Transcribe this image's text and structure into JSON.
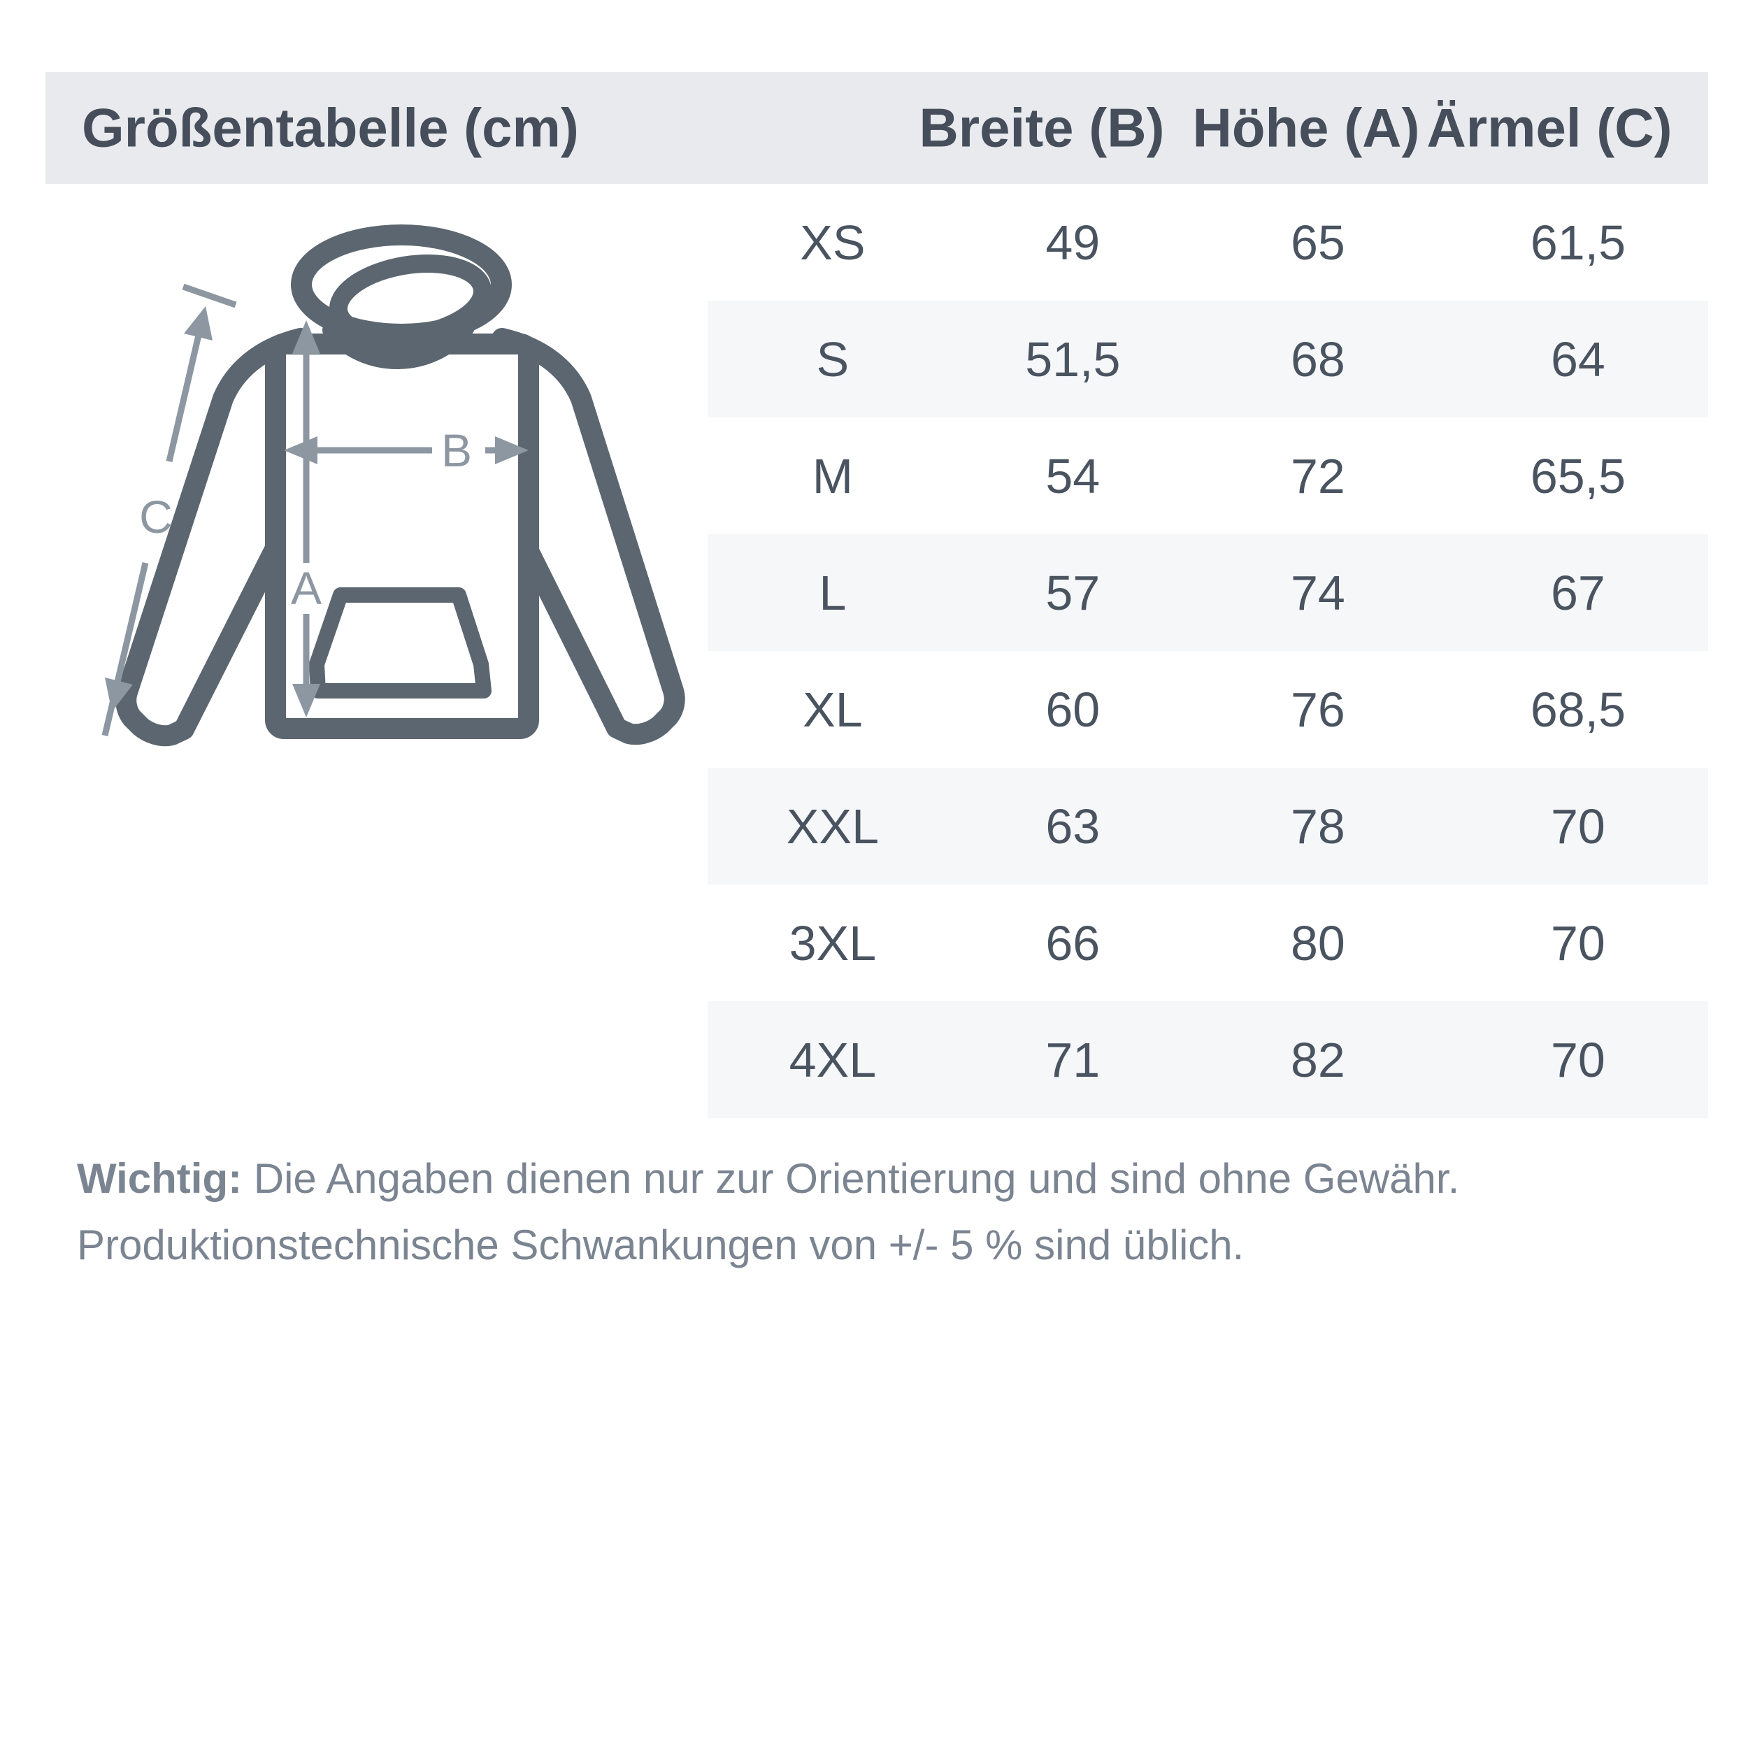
{
  "header": {
    "title": "Größentabelle (cm)",
    "columns": [
      "Breite (B)",
      "Höhe (A)",
      "Ärmel (C)"
    ]
  },
  "diagram": {
    "labels": {
      "a": "A",
      "b": "B",
      "c": "C"
    }
  },
  "table": {
    "rows": [
      {
        "size": "XS",
        "breite": "49",
        "hoehe": "65",
        "aermel": "61,5"
      },
      {
        "size": "S",
        "breite": "51,5",
        "hoehe": "68",
        "aermel": "64"
      },
      {
        "size": "M",
        "breite": "54",
        "hoehe": "72",
        "aermel": "65,5"
      },
      {
        "size": "L",
        "breite": "57",
        "hoehe": "74",
        "aermel": "67"
      },
      {
        "size": "XL",
        "breite": "60",
        "hoehe": "76",
        "aermel": "68,5"
      },
      {
        "size": "XXL",
        "breite": "63",
        "hoehe": "78",
        "aermel": "70"
      },
      {
        "size": "3XL",
        "breite": "66",
        "hoehe": "80",
        "aermel": "70"
      },
      {
        "size": "4XL",
        "breite": "71",
        "hoehe": "82",
        "aermel": "70"
      }
    ]
  },
  "footer": {
    "bold_label": "Wichtig:",
    "line1": "Die Angaben dienen nur zur Orientierung und sind ohne Gewähr.",
    "line2": "Produktionstechnische Schwankungen von +/- 5 % sind üblich."
  },
  "colors": {
    "header_bg": "#e9eaee",
    "row_alt_bg": "#f5f7f9",
    "header_text": "#454e5a",
    "table_text": "#4a5460",
    "note_text": "#7b8491",
    "hoodie_outline": "#5b6670",
    "dimension_arrows": "#8d97a2"
  }
}
